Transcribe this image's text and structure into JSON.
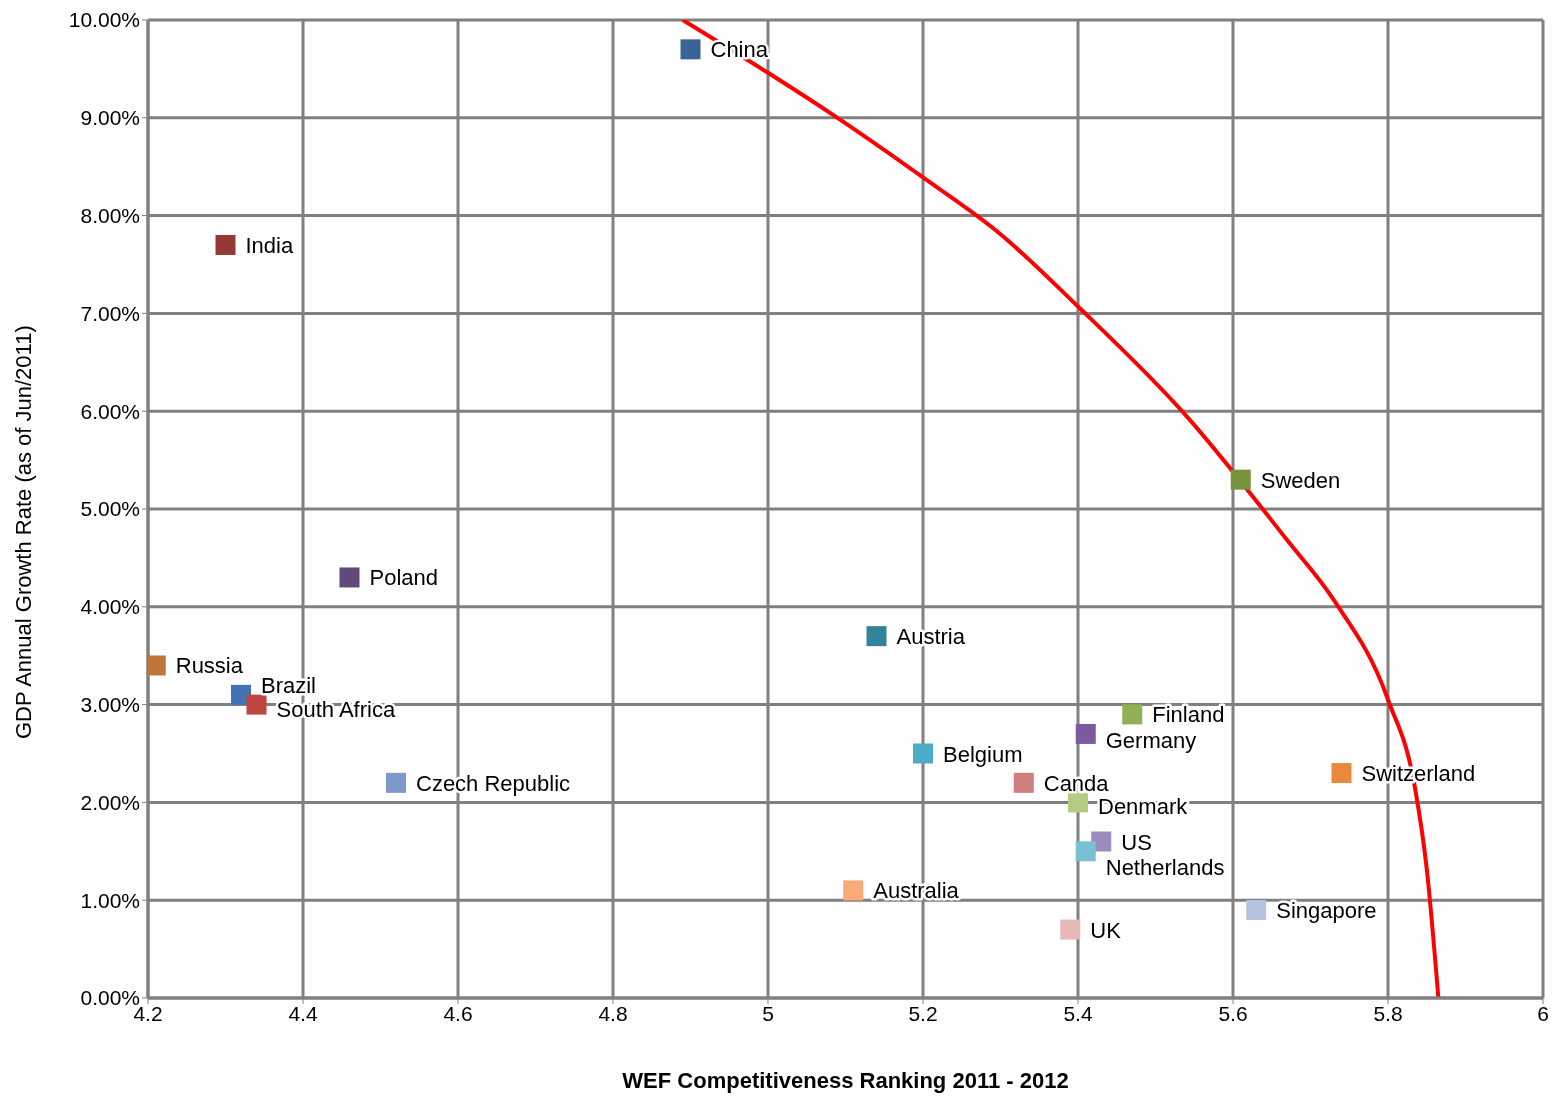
{
  "chart_data": {
    "type": "scatter",
    "xlabel": "WEF Competitiveness Ranking 2011 - 2012",
    "ylabel": "GDP Annual Growth Rate (as of Jun/2011)",
    "xlim": [
      4.2,
      6
    ],
    "xticks": [
      4.2,
      4.4,
      4.6,
      4.8,
      5,
      5.2,
      5.4,
      5.6,
      5.8,
      6
    ],
    "ylim": [
      0,
      10
    ],
    "yticks": [
      {
        "value": 0,
        "label": "0.00%"
      },
      {
        "value": 1,
        "label": "1.00%"
      },
      {
        "value": 2,
        "label": "2.00%"
      },
      {
        "value": 3,
        "label": "3.00%"
      },
      {
        "value": 4,
        "label": "4.00%"
      },
      {
        "value": 5,
        "label": "5.00%"
      },
      {
        "value": 6,
        "label": "6.00%"
      },
      {
        "value": 7,
        "label": "7.00%"
      },
      {
        "value": 8,
        "label": "8.00%"
      },
      {
        "value": 9,
        "label": "9.00%"
      },
      {
        "value": 10,
        "label": "10.00%"
      }
    ],
    "grid": true,
    "marker": "square",
    "series": [
      {
        "name": "China",
        "color": "#3a6496",
        "x": [
          4.9
        ],
        "values": [
          9.7
        ]
      },
      {
        "name": "India",
        "color": "#953735",
        "x": [
          4.3
        ],
        "values": [
          7.7
        ]
      },
      {
        "name": "Poland",
        "color": "#604a7b",
        "x": [
          4.46
        ],
        "values": [
          4.3
        ]
      },
      {
        "name": "Russia",
        "color": "#c0743a",
        "x": [
          4.21
        ],
        "values": [
          3.4
        ]
      },
      {
        "name": "Brazil",
        "color": "#4373b4",
        "x": [
          4.32
        ],
        "values": [
          3.1
        ]
      },
      {
        "name": "South Africa",
        "color": "#bf4543",
        "x": [
          4.34
        ],
        "values": [
          3.0
        ]
      },
      {
        "name": "Czech Republic",
        "color": "#7b9ac8",
        "x": [
          4.52
        ],
        "values": [
          2.2
        ]
      },
      {
        "name": "Austria",
        "color": "#31849b",
        "x": [
          5.14
        ],
        "values": [
          3.7
        ]
      },
      {
        "name": "Belgium",
        "color": "#4bacc6",
        "x": [
          5.2
        ],
        "values": [
          2.5
        ]
      },
      {
        "name": "Australia",
        "color": "#f9a97a",
        "x": [
          5.11
        ],
        "values": [
          1.1
        ]
      },
      {
        "name": "Canda",
        "color": "#d07f7e",
        "x": [
          5.33
        ],
        "values": [
          2.2
        ]
      },
      {
        "name": "UK",
        "color": "#e6b9b8",
        "x": [
          5.39
        ],
        "values": [
          0.7
        ]
      },
      {
        "name": "Germany",
        "color": "#7a5ba0",
        "x": [
          5.41
        ],
        "values": [
          2.7
        ]
      },
      {
        "name": "Finland",
        "color": "#8fb153",
        "x": [
          5.47
        ],
        "values": [
          2.9
        ]
      },
      {
        "name": "Denmark",
        "color": "#b3cc82",
        "x": [
          5.4
        ],
        "values": [
          2.0
        ]
      },
      {
        "name": "US",
        "color": "#9c8bbd",
        "x": [
          5.43
        ],
        "values": [
          1.6
        ]
      },
      {
        "name": "Netherlands",
        "color": "#78c0d3",
        "x": [
          5.41
        ],
        "values": [
          1.5
        ]
      },
      {
        "name": "Sweden",
        "color": "#77933c",
        "x": [
          5.61
        ],
        "values": [
          5.3
        ]
      },
      {
        "name": "Switzerland",
        "color": "#e8893c",
        "x": [
          5.74
        ],
        "values": [
          2.3
        ]
      },
      {
        "name": "Singapore",
        "color": "#b5c3e0",
        "x": [
          5.63
        ],
        "values": [
          0.9
        ]
      },
      {
        "type": "line",
        "color": "#ff0000",
        "marker": "none",
        "x": [
          4.89,
          5,
          5.08,
          5.2,
          5.3,
          5.4,
          5.54,
          5.67,
          5.73,
          5.8,
          5.835,
          5.85,
          5.865
        ],
        "values": [
          10,
          9.46,
          9.05,
          8.39,
          7.81,
          7.07,
          5.95,
          4.68,
          4.07,
          3.05,
          2.14,
          1.32,
          0
        ]
      }
    ]
  }
}
